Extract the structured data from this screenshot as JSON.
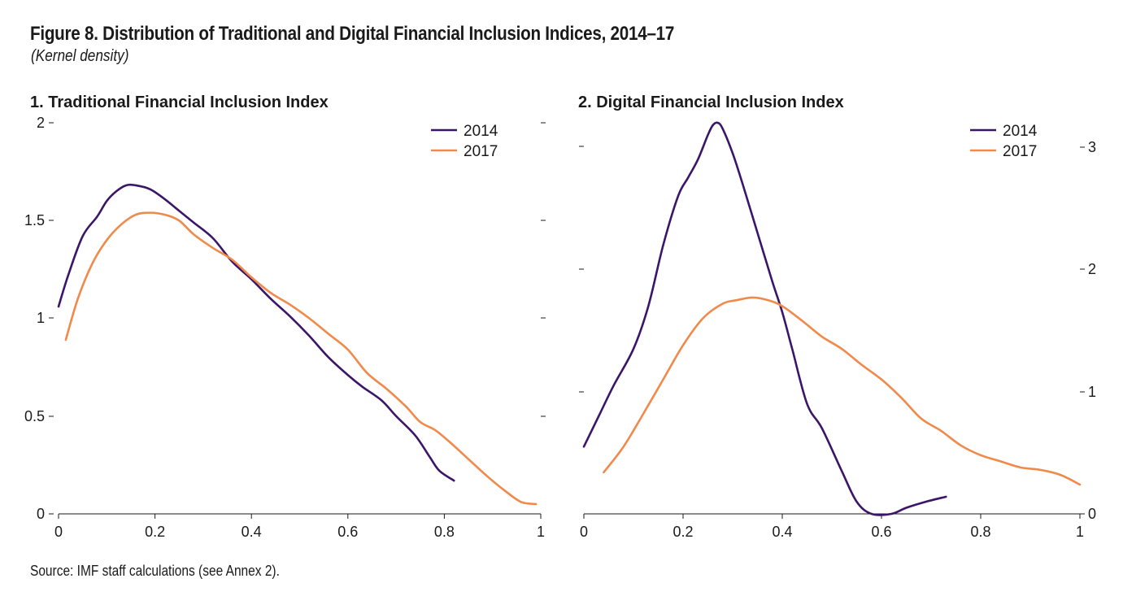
{
  "figure": {
    "title": "Figure 8. Distribution of Traditional and Digital Financial Inclusion Indices, 2014–17",
    "subtitle": "(Kernel density)",
    "source": "Source: IMF staff calculations (see Annex 2)."
  },
  "colors": {
    "s2014": "#3b1668",
    "s2017": "#f0894a",
    "axis": "#1a1a1a"
  },
  "chart_data": [
    {
      "type": "line",
      "title": "1. Traditional Financial Inclusion Index",
      "xlim": [
        0,
        1
      ],
      "ylim": [
        0,
        2
      ],
      "x_ticks": [
        "0",
        "0.2",
        "0.4",
        "0.6",
        "0.8",
        "1"
      ],
      "y_ticks_left": [
        "0",
        "0.5",
        "1",
        "1.5",
        "2"
      ],
      "y_ticks_right": [],
      "legend_position": "top-right",
      "series": [
        {
          "name": "2014",
          "color": "#3b1668",
          "x": [
            0.0,
            0.02,
            0.05,
            0.08,
            0.1,
            0.12,
            0.14,
            0.16,
            0.19,
            0.22,
            0.25,
            0.28,
            0.32,
            0.36,
            0.4,
            0.44,
            0.48,
            0.52,
            0.56,
            0.6,
            0.63,
            0.67,
            0.7,
            0.74,
            0.77,
            0.79,
            0.82
          ],
          "y": [
            1.06,
            1.22,
            1.42,
            1.52,
            1.6,
            1.65,
            1.68,
            1.68,
            1.66,
            1.61,
            1.55,
            1.49,
            1.41,
            1.29,
            1.2,
            1.1,
            1.01,
            0.91,
            0.8,
            0.71,
            0.65,
            0.58,
            0.5,
            0.4,
            0.29,
            0.22,
            0.17
          ]
        },
        {
          "name": "2017",
          "color": "#f0894a",
          "x": [
            0.015,
            0.04,
            0.07,
            0.1,
            0.13,
            0.16,
            0.19,
            0.22,
            0.25,
            0.28,
            0.32,
            0.36,
            0.4,
            0.44,
            0.48,
            0.52,
            0.56,
            0.6,
            0.64,
            0.68,
            0.72,
            0.75,
            0.78,
            0.81,
            0.85,
            0.89,
            0.93,
            0.96,
            0.99
          ],
          "y": [
            0.89,
            1.1,
            1.28,
            1.4,
            1.48,
            1.53,
            1.54,
            1.53,
            1.5,
            1.43,
            1.36,
            1.3,
            1.21,
            1.13,
            1.07,
            1.0,
            0.92,
            0.84,
            0.72,
            0.64,
            0.55,
            0.47,
            0.43,
            0.37,
            0.28,
            0.19,
            0.11,
            0.06,
            0.05
          ]
        }
      ]
    },
    {
      "type": "line",
      "title": "2. Digital Financial Inclusion Index",
      "xlim": [
        0,
        1
      ],
      "ylim": [
        0,
        3.2
      ],
      "x_ticks": [
        "0",
        "0.2",
        "0.4",
        "0.6",
        "0.8",
        "1"
      ],
      "y_ticks_left": [],
      "y_ticks_right": [
        "0",
        "1",
        "2",
        "3"
      ],
      "legend_position": "top-right",
      "series": [
        {
          "name": "2014",
          "color": "#3b1668",
          "x": [
            0.0,
            0.03,
            0.06,
            0.1,
            0.13,
            0.16,
            0.19,
            0.21,
            0.23,
            0.25,
            0.26,
            0.27,
            0.28,
            0.3,
            0.32,
            0.35,
            0.38,
            0.4,
            0.42,
            0.45,
            0.48,
            0.52,
            0.55,
            0.58,
            0.62,
            0.65,
            0.69,
            0.73
          ],
          "y": [
            0.55,
            0.8,
            1.05,
            1.35,
            1.7,
            2.2,
            2.6,
            2.75,
            2.9,
            3.1,
            3.18,
            3.2,
            3.15,
            2.95,
            2.7,
            2.3,
            1.9,
            1.65,
            1.35,
            0.9,
            0.7,
            0.35,
            0.1,
            0.0,
            0.0,
            0.05,
            0.1,
            0.14
          ]
        },
        {
          "name": "2017",
          "color": "#f0894a",
          "x": [
            0.04,
            0.08,
            0.12,
            0.16,
            0.2,
            0.24,
            0.28,
            0.31,
            0.34,
            0.37,
            0.4,
            0.44,
            0.48,
            0.52,
            0.56,
            0.6,
            0.64,
            0.68,
            0.72,
            0.76,
            0.8,
            0.84,
            0.88,
            0.92,
            0.96,
            1.0
          ],
          "y": [
            0.34,
            0.55,
            0.82,
            1.1,
            1.38,
            1.6,
            1.72,
            1.75,
            1.77,
            1.75,
            1.7,
            1.58,
            1.45,
            1.35,
            1.22,
            1.1,
            0.95,
            0.78,
            0.68,
            0.56,
            0.48,
            0.43,
            0.38,
            0.36,
            0.32,
            0.24
          ]
        }
      ]
    }
  ]
}
